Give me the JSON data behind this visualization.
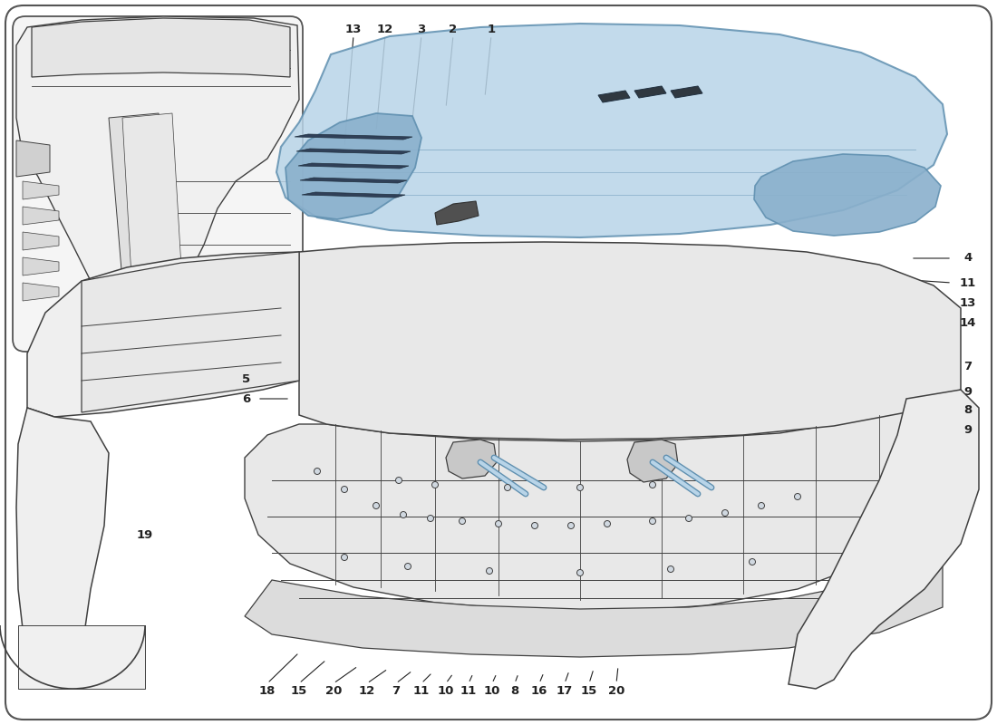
{
  "background_color": "#ffffff",
  "border_color": "#555555",
  "blue_fill": "#b8d4e8",
  "blue_stroke": "#6090b0",
  "dark_blue_fill": "#8ab0cc",
  "line_color": "#404040",
  "ann_color": "#222222",
  "watermark_yellow": "#c8b428",
  "watermark_gray": "#c0c0c0",
  "inset_bg": "#f5f5f5",
  "car_fill": "#f0f0f0",
  "frame_fill": "#e8e8e8",
  "part_numbers_top": [
    [
      "13",
      390,
      32
    ],
    [
      "12",
      425,
      32
    ],
    [
      "3",
      465,
      32
    ],
    [
      "2",
      500,
      32
    ],
    [
      "1",
      542,
      32
    ]
  ],
  "part_numbers_right": [
    [
      "4",
      1068,
      285
    ],
    [
      "11",
      1068,
      312
    ],
    [
      "13",
      1068,
      335
    ],
    [
      "14",
      1068,
      356
    ],
    [
      "7",
      1068,
      405
    ],
    [
      "9",
      1068,
      432
    ],
    [
      "8",
      1068,
      453
    ],
    [
      "9",
      1068,
      475
    ]
  ],
  "part_numbers_left": [
    [
      "5",
      272,
      418
    ],
    [
      "6",
      272,
      440
    ]
  ],
  "part_numbers_bottom": [
    [
      "18",
      295,
      762
    ],
    [
      "15",
      330,
      762
    ],
    [
      "20",
      368,
      762
    ],
    [
      "12",
      405,
      762
    ],
    [
      "7",
      437,
      762
    ],
    [
      "11",
      465,
      762
    ],
    [
      "10",
      492,
      762
    ],
    [
      "11",
      517,
      762
    ],
    [
      "10",
      543,
      762
    ],
    [
      "8",
      568,
      762
    ],
    [
      "16",
      595,
      762
    ],
    [
      "17",
      623,
      762
    ],
    [
      "15",
      650,
      762
    ],
    [
      "20",
      680,
      762
    ]
  ],
  "inset_label": [
    "19",
    160,
    590
  ]
}
